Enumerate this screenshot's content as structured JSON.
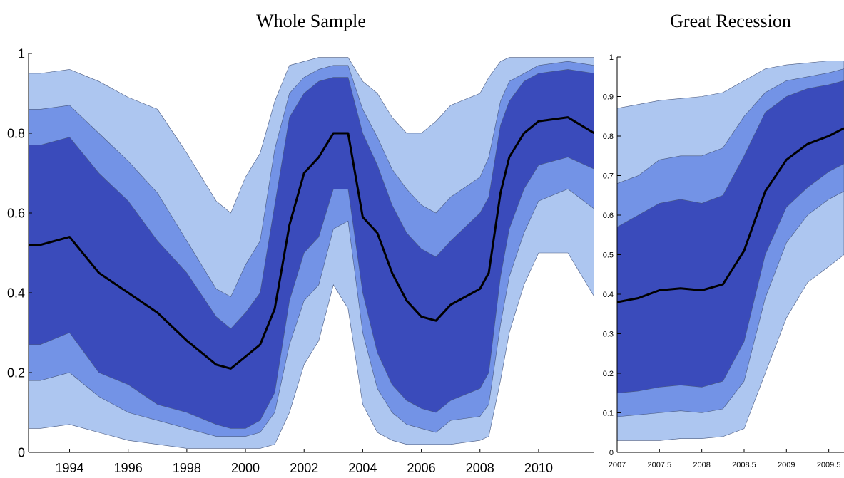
{
  "chart_data": [
    {
      "type": "fan",
      "title": "Whole Sample",
      "x": [
        1992.6,
        1993,
        1994,
        1995,
        1996,
        1997,
        1998,
        1999,
        1999.5,
        2000,
        2000.5,
        2001,
        2001.5,
        2002,
        2002.5,
        2003,
        2003.5,
        2004,
        2004.5,
        2005,
        2005.5,
        2006,
        2006.5,
        2007,
        2008,
        2008.3,
        2008.7,
        2009,
        2009.5,
        2010,
        2011,
        2011.9
      ],
      "bands": [
        {
          "color": "#adc6f0",
          "lower": [
            0.06,
            0.06,
            0.07,
            0.05,
            0.03,
            0.02,
            0.01,
            0.01,
            0.01,
            0.01,
            0.01,
            0.02,
            0.1,
            0.22,
            0.28,
            0.42,
            0.36,
            0.12,
            0.05,
            0.03,
            0.02,
            0.02,
            0.02,
            0.02,
            0.03,
            0.04,
            0.18,
            0.3,
            0.42,
            0.5,
            0.5,
            0.39
          ],
          "upper": [
            0.95,
            0.95,
            0.96,
            0.93,
            0.89,
            0.86,
            0.75,
            0.63,
            0.6,
            0.69,
            0.75,
            0.88,
            0.97,
            0.98,
            0.99,
            0.99,
            0.99,
            0.93,
            0.9,
            0.84,
            0.8,
            0.8,
            0.83,
            0.87,
            0.9,
            0.94,
            0.98,
            0.99,
            0.99,
            0.99,
            0.99,
            0.99
          ]
        },
        {
          "color": "#7393e6",
          "lower": [
            0.18,
            0.18,
            0.2,
            0.14,
            0.1,
            0.08,
            0.06,
            0.04,
            0.04,
            0.04,
            0.05,
            0.1,
            0.27,
            0.38,
            0.42,
            0.56,
            0.58,
            0.3,
            0.16,
            0.1,
            0.07,
            0.06,
            0.05,
            0.08,
            0.09,
            0.12,
            0.32,
            0.44,
            0.55,
            0.63,
            0.66,
            0.61
          ],
          "upper": [
            0.86,
            0.86,
            0.87,
            0.8,
            0.73,
            0.65,
            0.53,
            0.41,
            0.39,
            0.47,
            0.53,
            0.76,
            0.9,
            0.94,
            0.96,
            0.97,
            0.97,
            0.86,
            0.79,
            0.71,
            0.66,
            0.62,
            0.6,
            0.64,
            0.69,
            0.74,
            0.88,
            0.93,
            0.95,
            0.97,
            0.98,
            0.97
          ]
        },
        {
          "color": "#3a4bbb",
          "lower": [
            0.27,
            0.27,
            0.3,
            0.2,
            0.17,
            0.12,
            0.1,
            0.07,
            0.06,
            0.06,
            0.08,
            0.15,
            0.38,
            0.5,
            0.54,
            0.66,
            0.66,
            0.4,
            0.25,
            0.17,
            0.13,
            0.11,
            0.1,
            0.13,
            0.16,
            0.2,
            0.44,
            0.56,
            0.66,
            0.72,
            0.74,
            0.71
          ],
          "upper": [
            0.77,
            0.77,
            0.79,
            0.7,
            0.63,
            0.53,
            0.45,
            0.34,
            0.31,
            0.35,
            0.4,
            0.62,
            0.84,
            0.9,
            0.93,
            0.94,
            0.94,
            0.8,
            0.72,
            0.62,
            0.55,
            0.51,
            0.49,
            0.53,
            0.6,
            0.64,
            0.82,
            0.88,
            0.93,
            0.95,
            0.96,
            0.95
          ]
        }
      ],
      "median": {
        "color": "#000000",
        "values": [
          0.52,
          0.52,
          0.54,
          0.45,
          0.4,
          0.35,
          0.28,
          0.22,
          0.21,
          0.24,
          0.27,
          0.36,
          0.57,
          0.7,
          0.74,
          0.8,
          0.8,
          0.59,
          0.55,
          0.45,
          0.38,
          0.34,
          0.33,
          0.37,
          0.41,
          0.45,
          0.65,
          0.74,
          0.8,
          0.83,
          0.84,
          0.8
        ]
      },
      "xlim": [
        1992.6,
        2011.9
      ],
      "xticks": [
        1994,
        1996,
        1998,
        2000,
        2002,
        2004,
        2006,
        2008,
        2010
      ],
      "ylim": [
        0,
        1
      ],
      "yticks": [
        0,
        0.2,
        0.4,
        0.6,
        0.8,
        1
      ]
    },
    {
      "type": "fan",
      "title": "Great Recession",
      "x": [
        2007,
        2007.25,
        2007.5,
        2007.75,
        2008,
        2008.25,
        2008.5,
        2008.75,
        2009,
        2009.25,
        2009.5,
        2009.68
      ],
      "bands": [
        {
          "color": "#adc6f0",
          "lower": [
            0.03,
            0.03,
            0.03,
            0.035,
            0.035,
            0.04,
            0.06,
            0.2,
            0.34,
            0.43,
            0.47,
            0.5
          ],
          "upper": [
            0.87,
            0.88,
            0.89,
            0.895,
            0.9,
            0.91,
            0.94,
            0.97,
            0.98,
            0.985,
            0.99,
            0.99
          ]
        },
        {
          "color": "#7393e6",
          "lower": [
            0.09,
            0.095,
            0.1,
            0.105,
            0.1,
            0.11,
            0.18,
            0.39,
            0.53,
            0.6,
            0.64,
            0.66
          ],
          "upper": [
            0.68,
            0.7,
            0.74,
            0.75,
            0.75,
            0.77,
            0.85,
            0.91,
            0.94,
            0.95,
            0.96,
            0.97
          ]
        },
        {
          "color": "#3a4bbb",
          "lower": [
            0.15,
            0.155,
            0.165,
            0.17,
            0.165,
            0.18,
            0.28,
            0.5,
            0.62,
            0.67,
            0.71,
            0.73
          ],
          "upper": [
            0.57,
            0.6,
            0.63,
            0.64,
            0.63,
            0.65,
            0.75,
            0.86,
            0.9,
            0.92,
            0.93,
            0.94
          ]
        }
      ],
      "median": {
        "color": "#000000",
        "values": [
          0.38,
          0.39,
          0.41,
          0.415,
          0.41,
          0.425,
          0.51,
          0.66,
          0.74,
          0.78,
          0.8,
          0.82
        ]
      },
      "xlim": [
        2007,
        2009.68
      ],
      "xticks": [
        2007,
        2007.5,
        2008,
        2008.5,
        2009,
        2009.5
      ],
      "ylim": [
        0,
        1
      ],
      "yticks": [
        0,
        0.1,
        0.2,
        0.3,
        0.4,
        0.5,
        0.6,
        0.7,
        0.8,
        0.9,
        1
      ]
    }
  ]
}
